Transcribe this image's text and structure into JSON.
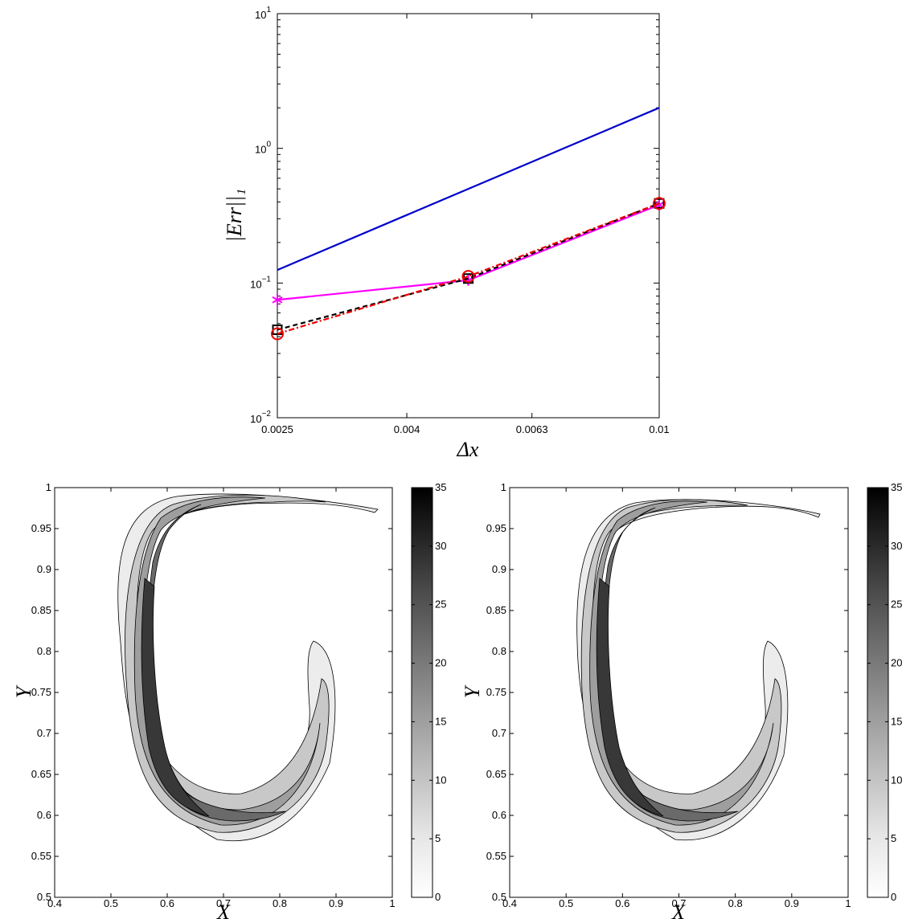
{
  "chart_data": [
    {
      "type": "line",
      "xlabel": "Δx",
      "ylabel": "|Err||₁",
      "x_scale": "log",
      "y_scale": "log",
      "xlim": [
        0.0025,
        0.01
      ],
      "ylim": [
        0.01,
        10
      ],
      "x_ticks": [
        "0.0025",
        "0.004",
        "0.0063",
        "0.01"
      ],
      "x_tick_values": [
        0.0025,
        0.004,
        0.0063,
        0.01
      ],
      "y_ticks": [
        {
          "base": "10",
          "exp": "−2"
        },
        {
          "base": "10",
          "exp": "−1"
        },
        {
          "base": "10",
          "exp": "0"
        },
        {
          "base": "10",
          "exp": "1"
        }
      ],
      "series": [
        {
          "color": "#0000cc",
          "style": "solid",
          "marker": "none",
          "x": [
            0.0025,
            0.01
          ],
          "y": [
            0.125,
            2.0
          ]
        },
        {
          "color": "#ff00ff",
          "style": "solid",
          "marker": "asterisk",
          "x": [
            0.0025,
            0.005,
            0.01
          ],
          "y": [
            0.075,
            0.105,
            0.38
          ]
        },
        {
          "color": "#000000",
          "style": "dashed",
          "marker": "square",
          "x": [
            0.0025,
            0.005,
            0.01
          ],
          "y": [
            0.045,
            0.108,
            0.39
          ]
        },
        {
          "color": "#ee0000",
          "style": "dash-dot",
          "marker": "circle",
          "x": [
            0.0025,
            0.005,
            0.01
          ],
          "y": [
            0.042,
            0.112,
            0.39
          ]
        }
      ]
    },
    {
      "type": "contour",
      "xlabel": "X",
      "ylabel": "Y",
      "xlim": [
        0.4,
        1
      ],
      "ylim": [
        0.5,
        1
      ],
      "x_ticks": [
        "0.4",
        "0.5",
        "0.6",
        "0.7",
        "0.8",
        "0.9",
        "1"
      ],
      "y_ticks": [
        "0.5",
        "0.55",
        "0.6",
        "0.65",
        "0.7",
        "0.75",
        "0.8",
        "0.85",
        "0.9",
        "0.95",
        "1"
      ],
      "colorbar": {
        "range": [
          0,
          35
        ],
        "ticks": [
          "0",
          "5",
          "10",
          "15",
          "20",
          "25",
          "30",
          "35"
        ]
      }
    },
    {
      "type": "contour",
      "xlabel": "X",
      "ylabel": "Y",
      "xlim": [
        0.4,
        1
      ],
      "ylim": [
        0.5,
        1
      ],
      "x_ticks": [
        "0.4",
        "0.5",
        "0.6",
        "0.7",
        "0.8",
        "0.9",
        "1"
      ],
      "y_ticks": [
        "0.5",
        "0.55",
        "0.6",
        "0.65",
        "0.7",
        "0.75",
        "0.8",
        "0.85",
        "0.9",
        "0.95",
        "1"
      ],
      "colorbar": {
        "range": [
          0,
          35
        ],
        "ticks": [
          "0",
          "5",
          "10",
          "15",
          "20",
          "25",
          "30",
          "35"
        ]
      }
    }
  ]
}
